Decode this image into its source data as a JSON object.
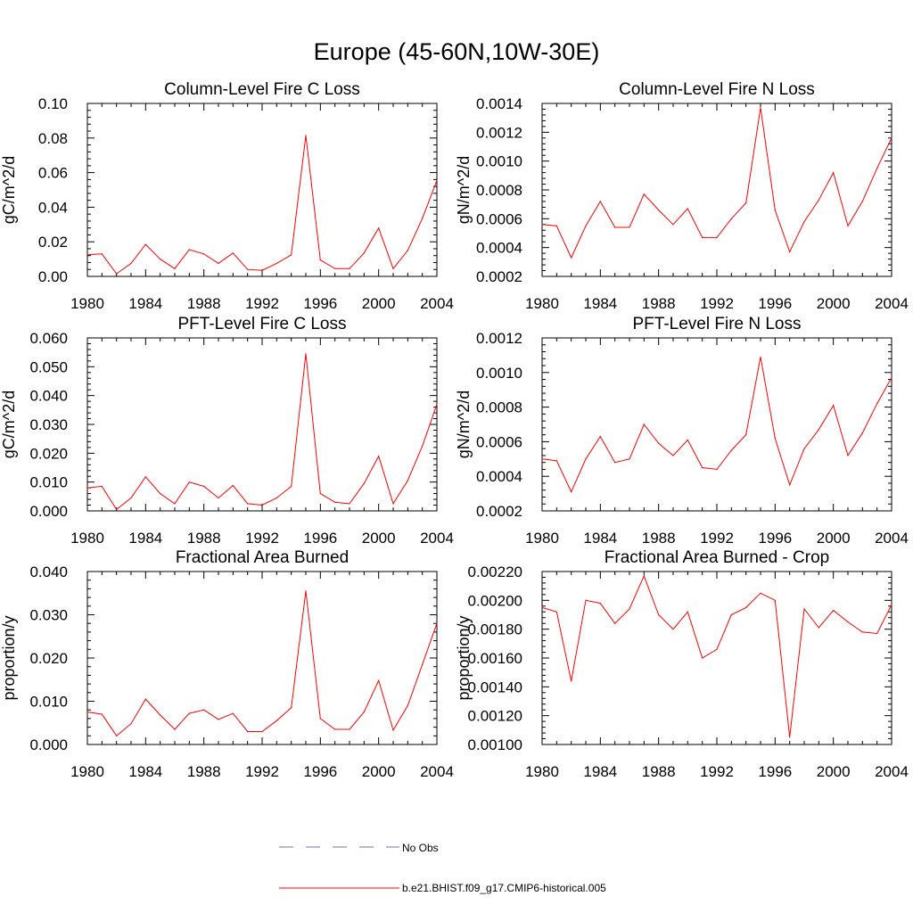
{
  "figure_title": "Europe (45-60N,10W-30E)",
  "legend": {
    "entries": [
      {
        "label": "No Obs",
        "style": "dashed",
        "color": "#6d6dd6"
      },
      {
        "label": "b.e21.BHIST.f09_g17.CMIP6-historical.005",
        "style": "solid",
        "color": "#ff0000"
      }
    ]
  },
  "line_color": "#ff0000",
  "chart_data": [
    {
      "type": "line",
      "title": "Column-Level Fire C Loss",
      "ylabel": "gC/m^2/d",
      "xlabel": "",
      "xlim": [
        1980,
        2004
      ],
      "ylim": [
        0.0,
        0.1
      ],
      "xticks": [
        "1980",
        "1984",
        "1988",
        "1992",
        "1996",
        "2000",
        "2004"
      ],
      "yticks": [
        "0.00",
        "0.02",
        "0.04",
        "0.06",
        "0.08",
        "0.10"
      ],
      "yticks_values": [
        0.0,
        0.02,
        0.04,
        0.06,
        0.08,
        0.1
      ],
      "x": [
        1980,
        1981,
        1982,
        1983,
        1984,
        1985,
        1986,
        1987,
        1988,
        1989,
        1990,
        1991,
        1992,
        1993,
        1994,
        1995,
        1996,
        1997,
        1998,
        1999,
        2000,
        2001,
        2002,
        2003,
        2004
      ],
      "series": [
        {
          "name": "b.e21.BHIST.f09_g17.CMIP6-historical.005",
          "values": [
            0.0125,
            0.013,
            0.0015,
            0.0075,
            0.0185,
            0.01,
            0.0045,
            0.0155,
            0.013,
            0.0075,
            0.0135,
            0.004,
            0.0035,
            0.0075,
            0.0125,
            0.0815,
            0.0095,
            0.0045,
            0.0045,
            0.0135,
            0.028,
            0.0045,
            0.015,
            0.0335,
            0.0555
          ]
        }
      ]
    },
    {
      "type": "line",
      "title": "Column-Level Fire N Loss",
      "ylabel": "gN/m^2/d",
      "xlabel": "",
      "xlim": [
        1980,
        2004
      ],
      "ylim": [
        0.0002,
        0.0014
      ],
      "xticks": [
        "1980",
        "1984",
        "1988",
        "1992",
        "1996",
        "2000",
        "2004"
      ],
      "yticks": [
        "0.0002",
        "0.0004",
        "0.0006",
        "0.0008",
        "0.0010",
        "0.0012",
        "0.0014"
      ],
      "yticks_values": [
        0.0002,
        0.0004,
        0.0006,
        0.0008,
        0.001,
        0.0012,
        0.0014
      ],
      "x": [
        1980,
        1981,
        1982,
        1983,
        1984,
        1985,
        1986,
        1987,
        1988,
        1989,
        1990,
        1991,
        1992,
        1993,
        1994,
        1995,
        1996,
        1997,
        1998,
        1999,
        2000,
        2001,
        2002,
        2003,
        2004
      ],
      "series": [
        {
          "name": "b.e21.BHIST.f09_g17.CMIP6-historical.005",
          "values": [
            0.00056,
            0.00055,
            0.00033,
            0.00055,
            0.00072,
            0.00054,
            0.00054,
            0.00077,
            0.00066,
            0.00056,
            0.00067,
            0.00047,
            0.00047,
            0.0006,
            0.00071,
            0.00137,
            0.00066,
            0.00037,
            0.00058,
            0.00073,
            0.00092,
            0.00055,
            0.00072,
            0.00095,
            0.00116
          ]
        }
      ]
    },
    {
      "type": "line",
      "title": "PFT-Level Fire C Loss",
      "ylabel": "gC/m^2/d",
      "xlabel": "",
      "xlim": [
        1980,
        2004
      ],
      "ylim": [
        0.0,
        0.06
      ],
      "xticks": [
        "1980",
        "1984",
        "1988",
        "1992",
        "1996",
        "2000",
        "2004"
      ],
      "yticks": [
        "0.000",
        "0.010",
        "0.020",
        "0.030",
        "0.040",
        "0.050",
        "0.060"
      ],
      "yticks_values": [
        0.0,
        0.01,
        0.02,
        0.03,
        0.04,
        0.05,
        0.06
      ],
      "x": [
        1980,
        1981,
        1982,
        1983,
        1984,
        1985,
        1986,
        1987,
        1988,
        1989,
        1990,
        1991,
        1992,
        1993,
        1994,
        1995,
        1996,
        1997,
        1998,
        1999,
        2000,
        2001,
        2002,
        2003,
        2004
      ],
      "series": [
        {
          "name": "b.e21.BHIST.f09_g17.CMIP6-historical.005",
          "values": [
            0.008,
            0.0085,
            0.0005,
            0.0045,
            0.0118,
            0.006,
            0.0025,
            0.01,
            0.0085,
            0.0045,
            0.0088,
            0.0025,
            0.002,
            0.0045,
            0.0085,
            0.0545,
            0.006,
            0.003,
            0.0025,
            0.0095,
            0.019,
            0.0025,
            0.0105,
            0.0225,
            0.037
          ]
        }
      ]
    },
    {
      "type": "line",
      "title": "PFT-Level Fire N Loss",
      "ylabel": "gN/m^2/d",
      "xlabel": "",
      "xlim": [
        1980,
        2004
      ],
      "ylim": [
        0.0002,
        0.0012
      ],
      "xticks": [
        "1980",
        "1984",
        "1988",
        "1992",
        "1996",
        "2000",
        "2004"
      ],
      "yticks": [
        "0.0002",
        "0.0004",
        "0.0006",
        "0.0008",
        "0.0010",
        "0.0012"
      ],
      "yticks_values": [
        0.0002,
        0.0004,
        0.0006,
        0.0008,
        0.001,
        0.0012
      ],
      "x": [
        1980,
        1981,
        1982,
        1983,
        1984,
        1985,
        1986,
        1987,
        1988,
        1989,
        1990,
        1991,
        1992,
        1993,
        1994,
        1995,
        1996,
        1997,
        1998,
        1999,
        2000,
        2001,
        2002,
        2003,
        2004
      ],
      "series": [
        {
          "name": "b.e21.BHIST.f09_g17.CMIP6-historical.005",
          "values": [
            0.0005,
            0.00049,
            0.00031,
            0.0005,
            0.00063,
            0.00048,
            0.0005,
            0.0007,
            0.00059,
            0.00052,
            0.00061,
            0.00045,
            0.00044,
            0.00055,
            0.00064,
            0.00109,
            0.00062,
            0.00035,
            0.00056,
            0.00067,
            0.00081,
            0.00052,
            0.00065,
            0.00082,
            0.00097
          ]
        }
      ]
    },
    {
      "type": "line",
      "title": "Fractional Area Burned",
      "ylabel": "proportion/y",
      "xlabel": "",
      "xlim": [
        1980,
        2004
      ],
      "ylim": [
        0.0,
        0.04
      ],
      "xticks": [
        "1980",
        "1984",
        "1988",
        "1992",
        "1996",
        "2000",
        "2004"
      ],
      "yticks": [
        "0.000",
        "0.010",
        "0.020",
        "0.030",
        "0.040"
      ],
      "yticks_values": [
        0.0,
        0.01,
        0.02,
        0.03,
        0.04
      ],
      "x": [
        1980,
        1981,
        1982,
        1983,
        1984,
        1985,
        1986,
        1987,
        1988,
        1989,
        1990,
        1991,
        1992,
        1993,
        1994,
        1995,
        1996,
        1997,
        1998,
        1999,
        2000,
        2001,
        2002,
        2003,
        2004
      ],
      "series": [
        {
          "name": "b.e21.BHIST.f09_g17.CMIP6-historical.005",
          "values": [
            0.0075,
            0.007,
            0.002,
            0.0048,
            0.0105,
            0.0068,
            0.0035,
            0.0072,
            0.008,
            0.0058,
            0.0072,
            0.003,
            0.003,
            0.0055,
            0.0085,
            0.0355,
            0.006,
            0.0035,
            0.0035,
            0.0075,
            0.0148,
            0.0033,
            0.009,
            0.0185,
            0.028
          ]
        }
      ]
    },
    {
      "type": "line",
      "title": "Fractional Area Burned - Crop",
      "ylabel": "proportion/y",
      "xlabel": "",
      "xlim": [
        1980,
        2004
      ],
      "ylim": [
        0.001,
        0.0022
      ],
      "xticks": [
        "1980",
        "1984",
        "1988",
        "1992",
        "1996",
        "2000",
        "2004"
      ],
      "yticks": [
        "0.00100",
        "0.00120",
        "0.00140",
        "0.00160",
        "0.00180",
        "0.00200",
        "0.00220"
      ],
      "yticks_values": [
        0.001,
        0.0012,
        0.0014,
        0.0016,
        0.0018,
        0.002,
        0.0022
      ],
      "x": [
        1980,
        1981,
        1982,
        1983,
        1984,
        1985,
        1986,
        1987,
        1988,
        1989,
        1990,
        1991,
        1992,
        1993,
        1994,
        1995,
        1996,
        1997,
        1998,
        1999,
        2000,
        2001,
        2002,
        2003,
        2004
      ],
      "series": [
        {
          "name": "b.e21.BHIST.f09_g17.CMIP6-historical.005",
          "values": [
            0.00195,
            0.00192,
            0.00144,
            0.002,
            0.00198,
            0.00184,
            0.00194,
            0.00217,
            0.0019,
            0.0018,
            0.00192,
            0.0016,
            0.00166,
            0.0019,
            0.00195,
            0.00205,
            0.002,
            0.00105,
            0.00194,
            0.00181,
            0.00193,
            0.00185,
            0.00178,
            0.00177,
            0.00197
          ]
        }
      ]
    }
  ]
}
